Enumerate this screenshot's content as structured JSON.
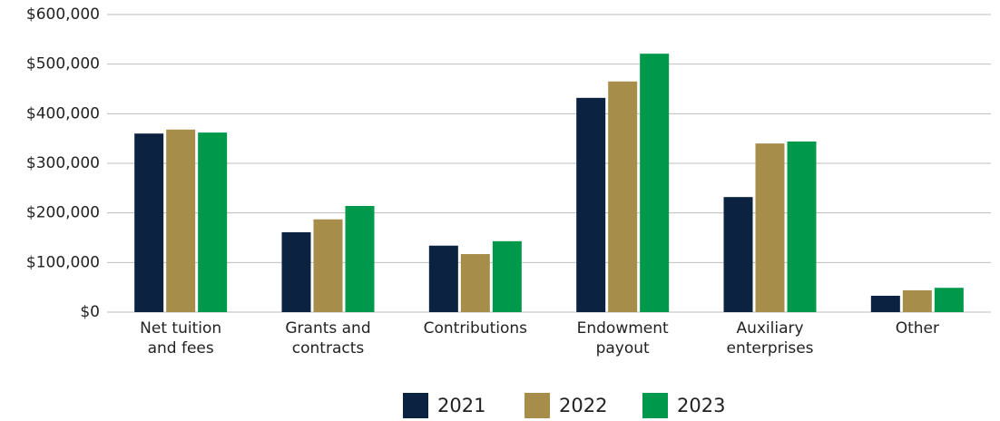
{
  "chart_data": {
    "type": "bar",
    "categories": [
      "Net tuition and fees",
      "Grants and contracts",
      "Contributions",
      "Endowment payout",
      "Auxiliary enterprises",
      "Other"
    ],
    "series": [
      {
        "name": "2021",
        "color": "#0b2240",
        "values": [
          360000,
          161000,
          134000,
          432000,
          232000,
          33000
        ]
      },
      {
        "name": "2022",
        "color": "#a68d4a",
        "values": [
          368000,
          187000,
          117000,
          465000,
          340000,
          44000
        ]
      },
      {
        "name": "2023",
        "color": "#00984a",
        "values": [
          362000,
          214000,
          143000,
          521000,
          344000,
          49000
        ]
      }
    ],
    "ylim": [
      0,
      600000
    ],
    "yticks": [
      {
        "value": 0,
        "label": "$0"
      },
      {
        "value": 100000,
        "label": "$100,000"
      },
      {
        "value": 200000,
        "label": "$200,000"
      },
      {
        "value": 300000,
        "label": "$300,000"
      },
      {
        "value": 400000,
        "label": "$400,000"
      },
      {
        "value": 500000,
        "label": "$500,000"
      },
      {
        "value": 600000,
        "label": "$600,000"
      }
    ],
    "grid": true,
    "legend": "bottom"
  }
}
